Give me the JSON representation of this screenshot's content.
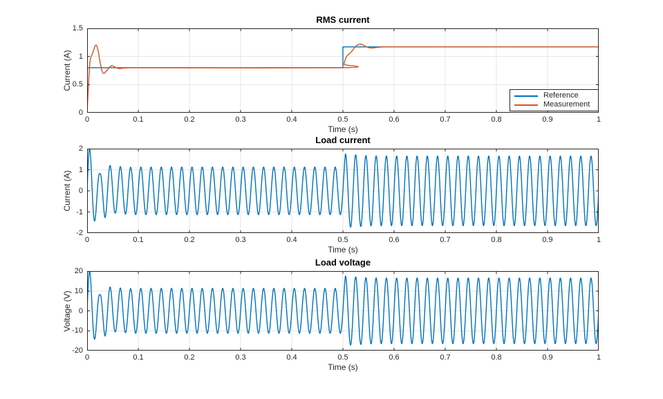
{
  "figure": {
    "background_color": "#FFFFFF",
    "axis_color": "#262626",
    "grid_color": "#E6E6E6",
    "accent_blue": "#0072BD",
    "accent_orange": "#D95319"
  },
  "legend": {
    "entries": [
      "Reference",
      "Measurement"
    ],
    "position": "southeast-of-first-plot"
  },
  "chart_data": [
    {
      "type": "line",
      "title": "RMS current",
      "xlabel": "Time (s)",
      "ylabel": "Current (A)",
      "xlim": [
        0,
        1
      ],
      "ylim": [
        0,
        1.5
      ],
      "grid": true,
      "legend_position": "southeast",
      "xtick_values": [
        0,
        0.1,
        0.2,
        0.3,
        0.4,
        0.5,
        0.6,
        0.7,
        0.8,
        0.9,
        1
      ],
      "xtick_labels": [
        "0",
        "0.1",
        "0.2",
        "0.3",
        "0.4",
        "0.5",
        "0.6",
        "0.7",
        "0.8",
        "0.9",
        "1"
      ],
      "ytick_values": [
        0,
        0.5,
        1,
        1.5
      ],
      "ytick_labels": [
        "0",
        "0.5",
        "1",
        "1.5"
      ],
      "series": [
        {
          "name": "Reference",
          "color": "#0072BD",
          "mode": "points",
          "smooth": false,
          "points": [
            [
              0,
              0.8
            ],
            [
              0.5,
              0.8
            ],
            [
              0.5,
              1.17
            ],
            [
              1,
              1.17
            ]
          ]
        },
        {
          "name": "Measurement",
          "color": "#D95319",
          "mode": "points",
          "smooth": true,
          "points": [
            [
              0,
              0
            ],
            [
              0.002,
              0.38
            ],
            [
              0.004,
              0.72
            ],
            [
              0.006,
              0.93
            ],
            [
              0.008,
              1.0
            ],
            [
              0.01,
              1.04
            ],
            [
              0.012,
              1.09
            ],
            [
              0.014,
              1.15
            ],
            [
              0.016,
              1.19
            ],
            [
              0.018,
              1.2
            ],
            [
              0.02,
              1.16
            ],
            [
              0.022,
              1.08
            ],
            [
              0.024,
              0.97
            ],
            [
              0.026,
              0.87
            ],
            [
              0.028,
              0.78
            ],
            [
              0.03,
              0.72
            ],
            [
              0.032,
              0.7
            ],
            [
              0.034,
              0.705
            ],
            [
              0.036,
              0.725
            ],
            [
              0.039,
              0.755
            ],
            [
              0.042,
              0.79
            ],
            [
              0.045,
              0.82
            ],
            [
              0.048,
              0.835
            ],
            [
              0.051,
              0.83
            ],
            [
              0.054,
              0.815
            ],
            [
              0.057,
              0.8
            ],
            [
              0.06,
              0.79
            ],
            [
              0.064,
              0.785
            ],
            [
              0.068,
              0.79
            ],
            [
              0.074,
              0.795
            ],
            [
              0.082,
              0.8
            ],
            [
              0.1,
              0.8
            ],
            [
              0.5,
              0.8
            ],
            [
              0.502,
              0.86
            ],
            [
              0.504,
              0.93
            ],
            [
              0.506,
              0.98
            ],
            [
              0.508,
              1.01
            ],
            [
              0.51,
              1.03
            ],
            [
              0.513,
              1.05
            ],
            [
              0.516,
              1.08
            ],
            [
              0.519,
              1.11
            ],
            [
              0.522,
              1.15
            ],
            [
              0.525,
              1.18
            ],
            [
              0.528,
              1.2
            ],
            [
              0.531,
              1.215
            ],
            [
              0.534,
              1.22
            ],
            [
              0.537,
              1.215
            ],
            [
              0.54,
              1.2
            ],
            [
              0.544,
              1.18
            ],
            [
              0.548,
              1.165
            ],
            [
              0.552,
              1.155
            ],
            [
              0.557,
              1.15
            ],
            [
              0.562,
              1.155
            ],
            [
              0.568,
              1.163
            ],
            [
              0.575,
              1.168
            ],
            [
              0.585,
              1.17
            ],
            [
              0.62,
              1.17
            ],
            [
              1,
              1.17
            ]
          ]
        }
      ]
    },
    {
      "type": "line",
      "title": "Load current",
      "xlabel": "Time (s)",
      "ylabel": "Current (A)",
      "xlim": [
        0,
        1
      ],
      "ylim": [
        -2,
        2
      ],
      "grid": true,
      "xtick_values": [
        0,
        0.1,
        0.2,
        0.3,
        0.4,
        0.5,
        0.6,
        0.7,
        0.8,
        0.9,
        1
      ],
      "xtick_labels": [
        "0",
        "0.1",
        "0.2",
        "0.3",
        "0.4",
        "0.5",
        "0.6",
        "0.7",
        "0.8",
        "0.9",
        "1"
      ],
      "ytick_values": [
        -2,
        -1,
        0,
        1,
        2
      ],
      "ytick_labels": [
        "-2",
        "-1",
        "0",
        "1",
        "2"
      ],
      "series": [
        {
          "name": "Load current",
          "color": "#0072BD",
          "mode": "synth_sine",
          "freq_hz": 50,
          "phase_deg": 0,
          "amplitude_scale": 1,
          "sample_step_s": 0.0005,
          "steady_amplitude_before_0p5": 1.13,
          "steady_amplitude_after_0p5": 1.65,
          "envelope": [
            [
              0,
              2.15
            ],
            [
              0.005,
              2.0
            ],
            [
              0.015,
              1.42
            ],
            [
              0.025,
              0.8
            ],
            [
              0.035,
              1.27
            ],
            [
              0.045,
              1.2
            ],
            [
              0.055,
              1.06
            ],
            [
              0.065,
              1.15
            ],
            [
              0.075,
              1.1
            ],
            [
              0.09,
              1.13
            ],
            [
              0.5,
              1.13
            ],
            [
              0.505,
              1.75
            ],
            [
              0.515,
              1.72
            ],
            [
              0.53,
              1.7
            ],
            [
              0.55,
              1.66
            ],
            [
              0.6,
              1.65
            ],
            [
              1,
              1.65
            ]
          ]
        }
      ]
    },
    {
      "type": "line",
      "title": "Load voltage",
      "xlabel": "Time (s)",
      "ylabel": "Voltage (V)",
      "xlim": [
        0,
        1
      ],
      "ylim": [
        -20,
        20
      ],
      "grid": true,
      "xtick_values": [
        0,
        0.1,
        0.2,
        0.3,
        0.4,
        0.5,
        0.6,
        0.7,
        0.8,
        0.9,
        1
      ],
      "xtick_labels": [
        "0",
        "0.1",
        "0.2",
        "0.3",
        "0.4",
        "0.5",
        "0.6",
        "0.7",
        "0.8",
        "0.9",
        "1"
      ],
      "ytick_values": [
        -20,
        -10,
        0,
        10,
        20
      ],
      "ytick_labels": [
        "-20",
        "-10",
        "0",
        "10",
        "20"
      ],
      "series": [
        {
          "name": "Load voltage",
          "color": "#0072BD",
          "mode": "synth_sine",
          "freq_hz": 50,
          "phase_deg": 0,
          "amplitude_scale": 10,
          "sample_step_s": 0.0005,
          "steady_amplitude_before_0p5": 11.3,
          "steady_amplitude_after_0p5": 16.5,
          "envelope": [
            [
              0,
              2.15
            ],
            [
              0.005,
              2.0
            ],
            [
              0.015,
              1.42
            ],
            [
              0.025,
              0.8
            ],
            [
              0.035,
              1.27
            ],
            [
              0.045,
              1.2
            ],
            [
              0.055,
              1.06
            ],
            [
              0.065,
              1.15
            ],
            [
              0.075,
              1.1
            ],
            [
              0.09,
              1.13
            ],
            [
              0.5,
              1.13
            ],
            [
              0.505,
              1.75
            ],
            [
              0.515,
              1.72
            ],
            [
              0.53,
              1.7
            ],
            [
              0.55,
              1.66
            ],
            [
              0.6,
              1.65
            ],
            [
              1,
              1.65
            ]
          ]
        }
      ]
    }
  ]
}
